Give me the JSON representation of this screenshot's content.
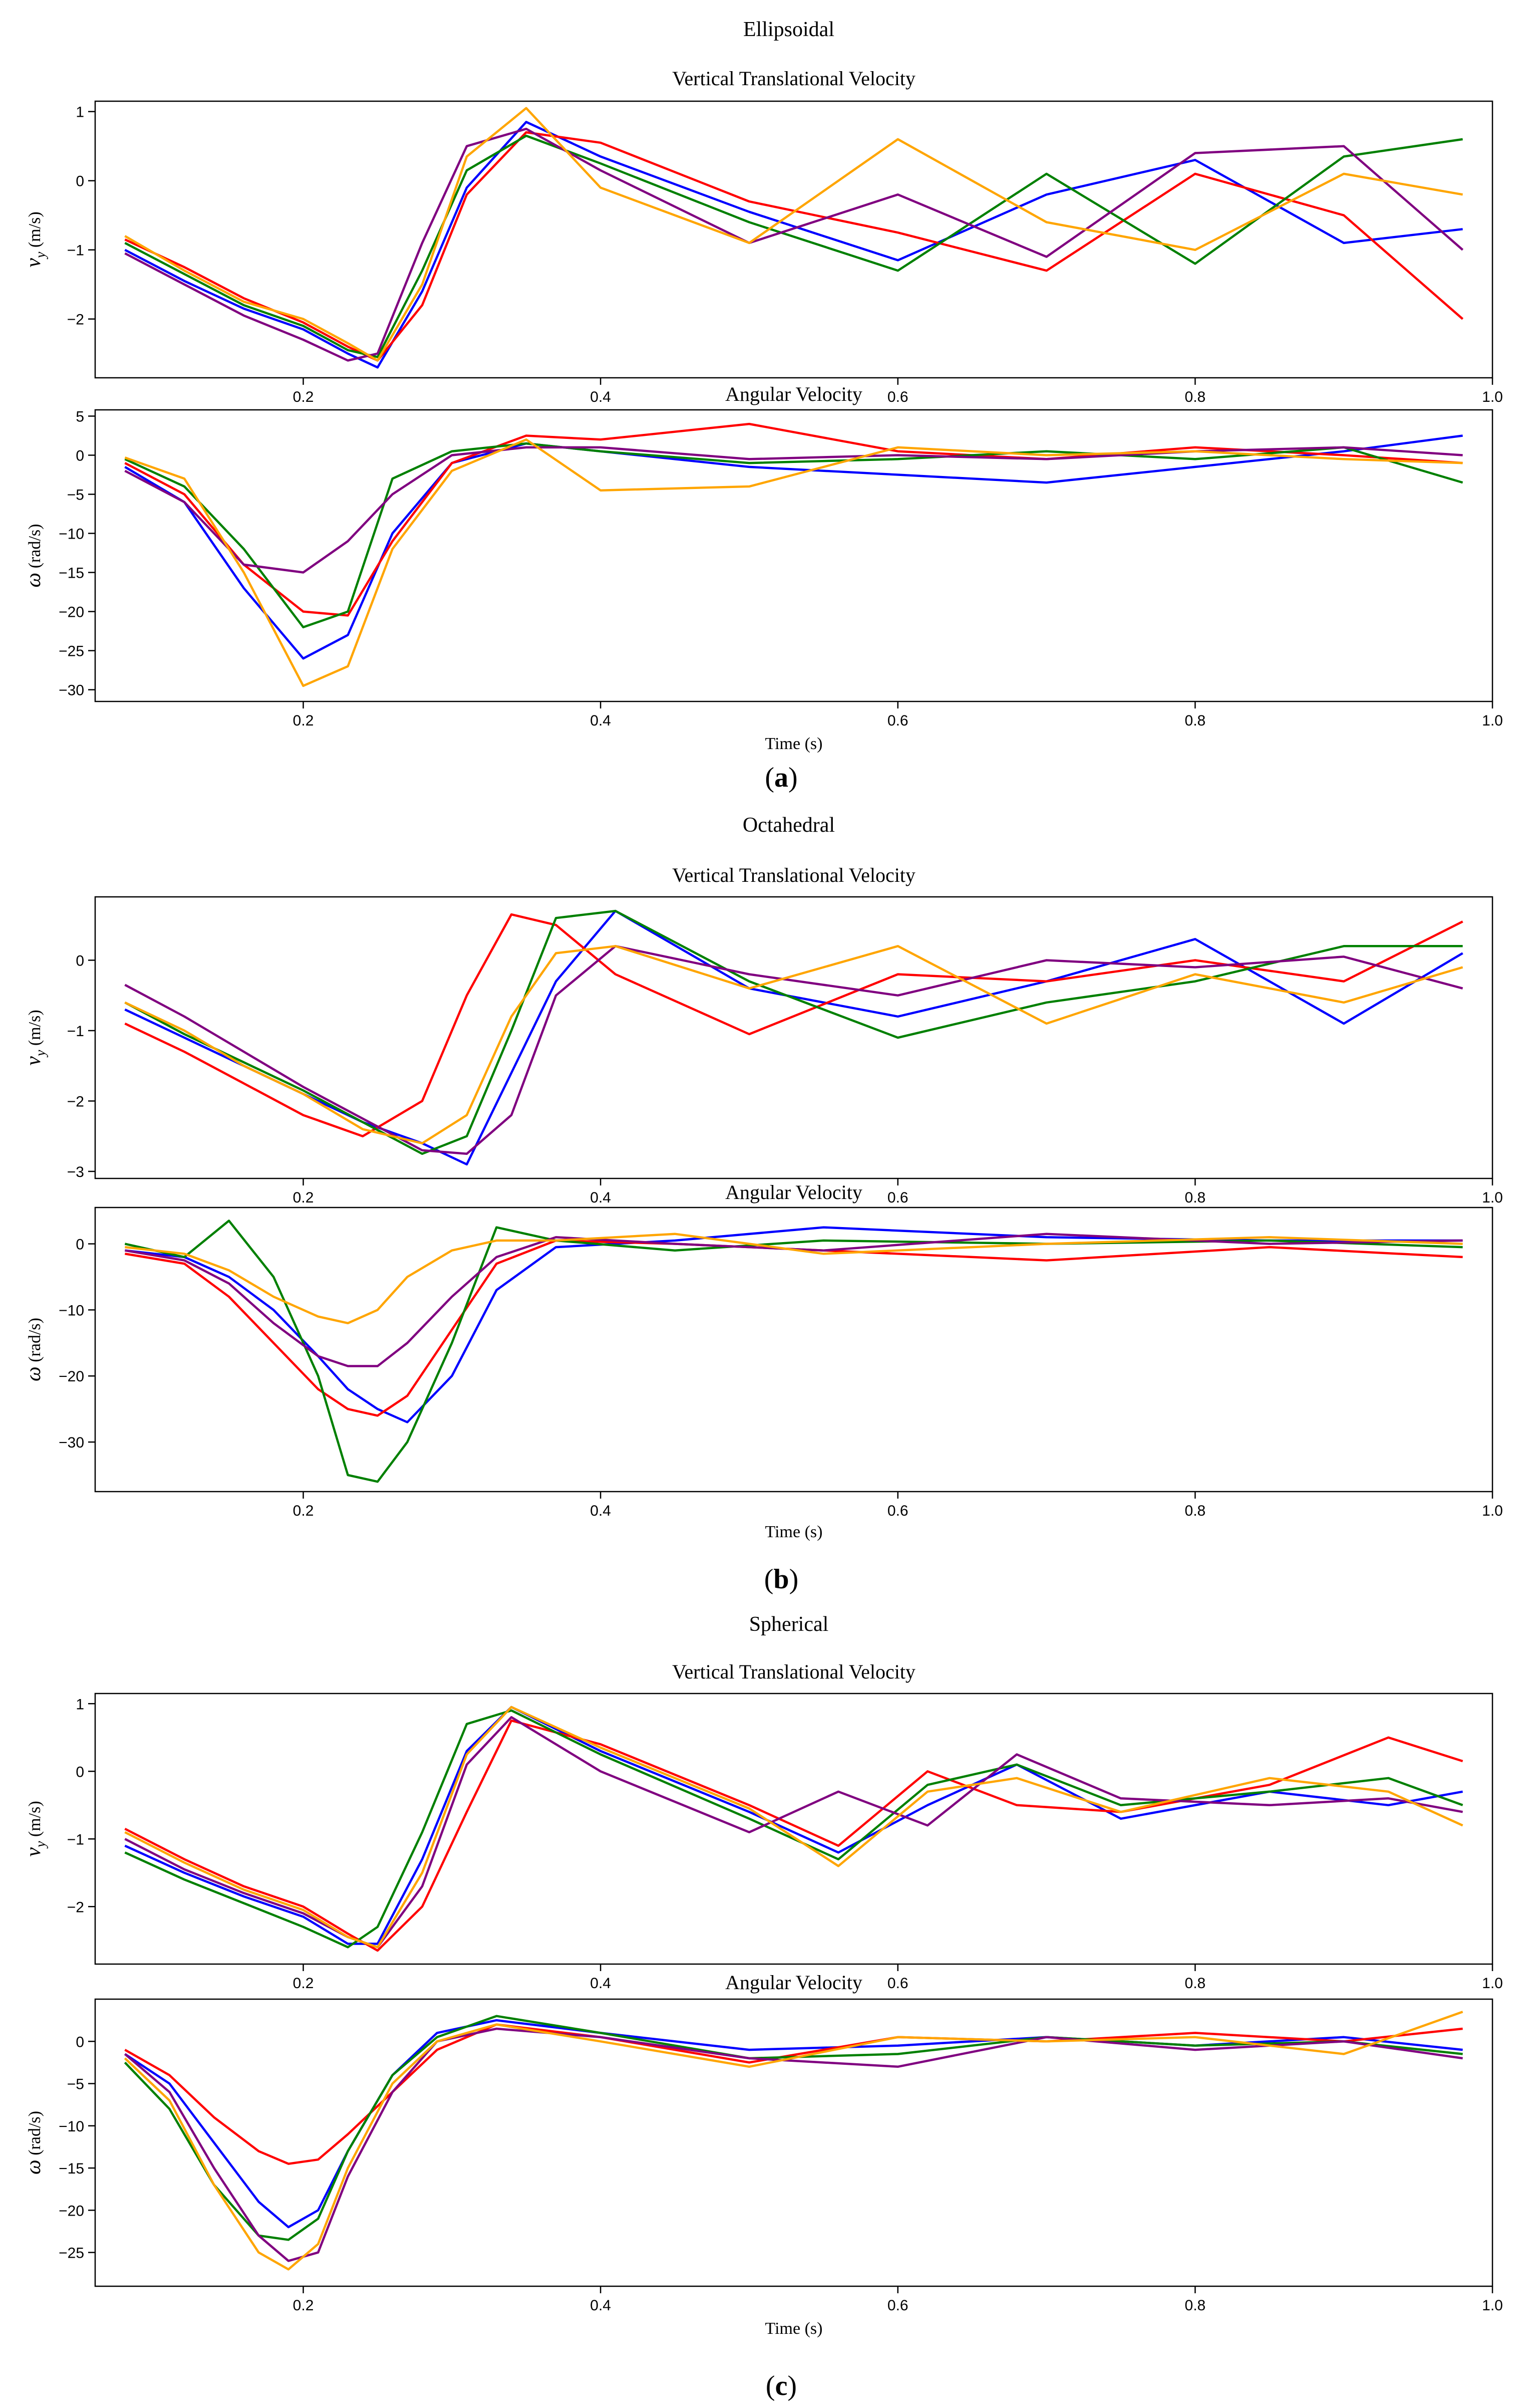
{
  "figure": {
    "panels": [
      {
        "id": "a",
        "caption": "a",
        "title": "Ellipsoidal"
      },
      {
        "id": "b",
        "caption": "b",
        "title": "Octahedral"
      },
      {
        "id": "c",
        "caption": "c",
        "title": "Spherical"
      }
    ]
  },
  "colors": {
    "series": [
      "#0000ff",
      "#ff0000",
      "#008000",
      "#800080",
      "#ffa500"
    ],
    "axis": "#000000",
    "background": "#ffffff"
  },
  "chart_data": [
    {
      "panel": "a",
      "type": "line",
      "title": "Vertical Translational Velocity",
      "xlabel": "",
      "ylabel": "v_y (m/s)",
      "ylabel_main": "v",
      "ylabel_sub": "y",
      "ylabel_unit": "(m/s)",
      "xlim": [
        0.06,
        1.0
      ],
      "ylim": [
        -2.85,
        1.15
      ],
      "xticks": [
        "0.2",
        "0.4",
        "0.6",
        "0.8",
        "1.0"
      ],
      "yticks": [
        "1",
        "0",
        "−1",
        "−2"
      ],
      "ytick_values": [
        1,
        0,
        -1,
        -2
      ],
      "x": [
        0.08,
        0.12,
        0.16,
        0.2,
        0.23,
        0.25,
        0.28,
        0.31,
        0.35,
        0.4,
        0.5,
        0.6,
        0.7,
        0.8,
        0.9,
        0.98
      ],
      "series": [
        {
          "name": "blue run",
          "color": "blue",
          "values": [
            -1.0,
            -1.45,
            -1.85,
            -2.15,
            -2.5,
            -2.7,
            -1.6,
            -0.1,
            0.85,
            0.35,
            -0.45,
            -1.15,
            -0.2,
            0.3,
            -0.9,
            -0.7
          ]
        },
        {
          "name": "red run",
          "color": "red",
          "values": [
            -0.85,
            -1.25,
            -1.7,
            -2.05,
            -2.4,
            -2.6,
            -1.8,
            -0.2,
            0.7,
            0.55,
            -0.3,
            -0.75,
            -1.3,
            0.1,
            -0.5,
            -2.0
          ]
        },
        {
          "name": "green run",
          "color": "green",
          "values": [
            -0.9,
            -1.35,
            -1.8,
            -2.1,
            -2.45,
            -2.55,
            -1.3,
            0.15,
            0.65,
            0.25,
            -0.6,
            -1.3,
            0.1,
            -1.2,
            0.35,
            0.6
          ]
        },
        {
          "name": "purple run",
          "color": "purple",
          "values": [
            -1.05,
            -1.5,
            -1.95,
            -2.3,
            -2.6,
            -2.5,
            -0.9,
            0.5,
            0.75,
            0.15,
            -0.9,
            -0.2,
            -1.1,
            0.4,
            0.5,
            -1.0
          ]
        },
        {
          "name": "orange run",
          "color": "orange",
          "values": [
            -0.8,
            -1.3,
            -1.75,
            -2.0,
            -2.35,
            -2.6,
            -1.5,
            0.35,
            1.05,
            -0.1,
            -0.9,
            0.6,
            -0.6,
            -1.0,
            0.1,
            -0.2
          ]
        }
      ]
    },
    {
      "panel": "a",
      "type": "line",
      "title": "Angular Velocity",
      "xlabel": "Time (s)",
      "ylabel": "ω (rad/s)",
      "ylabel_main": "ω",
      "ylabel_sub": "",
      "ylabel_unit": "(rad/s)",
      "xlim": [
        0.06,
        1.0
      ],
      "ylim": [
        -31.5,
        5.8
      ],
      "xticks": [
        "0.2",
        "0.4",
        "0.6",
        "0.8",
        "1.0"
      ],
      "yticks": [
        "5",
        "0",
        "−5",
        "−10",
        "−15",
        "−20",
        "−25",
        "−30"
      ],
      "ytick_values": [
        5,
        0,
        -5,
        -10,
        -15,
        -20,
        -25,
        -30
      ],
      "x": [
        0.08,
        0.12,
        0.16,
        0.2,
        0.23,
        0.26,
        0.3,
        0.35,
        0.4,
        0.5,
        0.6,
        0.7,
        0.8,
        0.9,
        0.98
      ],
      "series": [
        {
          "name": "blue run",
          "color": "blue",
          "values": [
            -1.5,
            -6.0,
            -17.0,
            -26.0,
            -23.0,
            -10.0,
            -1.0,
            1.5,
            0.5,
            -1.5,
            -2.5,
            -3.5,
            -1.5,
            0.5,
            2.5
          ]
        },
        {
          "name": "red run",
          "color": "red",
          "values": [
            -1.0,
            -5.0,
            -14.0,
            -20.0,
            -20.5,
            -11.0,
            -1.0,
            2.5,
            2.0,
            4.0,
            0.5,
            -0.5,
            1.0,
            0.0,
            -1.0
          ]
        },
        {
          "name": "green run",
          "color": "green",
          "values": [
            -0.5,
            -4.0,
            -12.0,
            -22.0,
            -20.0,
            -3.0,
            0.5,
            1.5,
            0.5,
            -1.0,
            -0.5,
            0.5,
            -0.5,
            1.0,
            -3.5
          ]
        },
        {
          "name": "purple run",
          "color": "purple",
          "values": [
            -2.0,
            -6.0,
            -14.0,
            -15.0,
            -11.0,
            -5.0,
            0.0,
            1.0,
            1.0,
            -0.5,
            0.0,
            -0.5,
            0.5,
            1.0,
            0.0
          ]
        },
        {
          "name": "orange run",
          "color": "orange",
          "values": [
            -0.3,
            -3.0,
            -15.0,
            -29.5,
            -27.0,
            -12.0,
            -2.0,
            2.0,
            -4.5,
            -4.0,
            1.0,
            0.0,
            0.5,
            -0.5,
            -1.0
          ]
        }
      ]
    },
    {
      "panel": "b",
      "type": "line",
      "title": "Vertical Translational Velocity",
      "xlabel": "",
      "ylabel": "v_y (m/s)",
      "ylabel_main": "v",
      "ylabel_sub": "y",
      "ylabel_unit": "(m/s)",
      "xlim": [
        0.06,
        1.0
      ],
      "ylim": [
        -3.1,
        0.9
      ],
      "xticks": [
        "0.2",
        "0.4",
        "0.6",
        "0.8",
        "1.0"
      ],
      "yticks": [
        "0",
        "−1",
        "−2",
        "−3"
      ],
      "ytick_values": [
        0,
        -1,
        -2,
        -3
      ],
      "x": [
        0.08,
        0.12,
        0.16,
        0.2,
        0.24,
        0.28,
        0.31,
        0.34,
        0.37,
        0.41,
        0.5,
        0.6,
        0.7,
        0.8,
        0.9,
        0.98
      ],
      "series": [
        {
          "name": "blue run",
          "color": "blue",
          "values": [
            -0.7,
            -1.1,
            -1.5,
            -1.9,
            -2.3,
            -2.6,
            -2.9,
            -1.6,
            -0.3,
            0.7,
            -0.4,
            -0.8,
            -0.3,
            0.3,
            -0.9,
            0.1
          ]
        },
        {
          "name": "red run",
          "color": "red",
          "values": [
            -0.9,
            -1.3,
            -1.75,
            -2.2,
            -2.5,
            -2.0,
            -0.5,
            0.65,
            0.5,
            -0.2,
            -1.05,
            -0.2,
            -0.3,
            0.0,
            -0.3,
            0.55
          ]
        },
        {
          "name": "green run",
          "color": "green",
          "values": [
            -0.6,
            -1.05,
            -1.45,
            -1.85,
            -2.3,
            -2.75,
            -2.5,
            -1.0,
            0.6,
            0.7,
            -0.3,
            -1.1,
            -0.6,
            -0.3,
            0.2,
            0.2
          ]
        },
        {
          "name": "purple run",
          "color": "purple",
          "values": [
            -0.35,
            -0.8,
            -1.3,
            -1.8,
            -2.25,
            -2.7,
            -2.75,
            -2.2,
            -0.5,
            0.2,
            -0.2,
            -0.5,
            0.0,
            -0.1,
            0.05,
            -0.4
          ]
        },
        {
          "name": "orange run",
          "color": "orange",
          "values": [
            -0.6,
            -1.0,
            -1.5,
            -1.9,
            -2.4,
            -2.6,
            -2.2,
            -0.8,
            0.1,
            0.2,
            -0.4,
            0.2,
            -0.9,
            -0.2,
            -0.6,
            -0.1
          ]
        }
      ]
    },
    {
      "panel": "b",
      "type": "line",
      "title": "Angular Velocity",
      "xlabel": "Time (s)",
      "ylabel": "ω (rad/s)",
      "ylabel_main": "ω",
      "ylabel_sub": "",
      "ylabel_unit": "(rad/s)",
      "xlim": [
        0.06,
        1.0
      ],
      "ylim": [
        -37.5,
        5.5
      ],
      "xticks": [
        "0.2",
        "0.4",
        "0.6",
        "0.8",
        "1.0"
      ],
      "yticks": [
        "0",
        "−10",
        "−20",
        "−30"
      ],
      "ytick_values": [
        0,
        -10,
        -20,
        -30
      ],
      "x": [
        0.08,
        0.12,
        0.15,
        0.18,
        0.21,
        0.23,
        0.25,
        0.27,
        0.3,
        0.33,
        0.37,
        0.45,
        0.55,
        0.7,
        0.85,
        0.98
      ],
      "series": [
        {
          "name": "blue run",
          "color": "blue",
          "values": [
            -1.0,
            -2.0,
            -5.0,
            -10.0,
            -17.0,
            -22.0,
            -25.0,
            -27.0,
            -20.0,
            -7.0,
            -0.5,
            0.5,
            2.5,
            1.0,
            0.5,
            0.5
          ]
        },
        {
          "name": "red run",
          "color": "red",
          "values": [
            -1.5,
            -3.0,
            -8.0,
            -15.0,
            -22.0,
            -25.0,
            -26.0,
            -23.0,
            -13.0,
            -3.0,
            0.5,
            0.0,
            -1.0,
            -2.5,
            -0.5,
            -2.0
          ]
        },
        {
          "name": "green run",
          "color": "green",
          "values": [
            0.0,
            -2.0,
            3.5,
            -5.0,
            -20.0,
            -35.0,
            -36.0,
            -30.0,
            -15.0,
            2.5,
            0.5,
            -1.0,
            0.5,
            0.0,
            0.5,
            -0.5
          ]
        },
        {
          "name": "purple run",
          "color": "purple",
          "values": [
            -1.0,
            -2.5,
            -6.0,
            -12.0,
            -17.0,
            -18.5,
            -18.5,
            -15.0,
            -8.0,
            -2.0,
            1.0,
            0.0,
            -1.0,
            1.5,
            0.0,
            0.5
          ]
        },
        {
          "name": "orange run",
          "color": "orange",
          "values": [
            -0.5,
            -1.5,
            -4.0,
            -8.0,
            -11.0,
            -12.0,
            -10.0,
            -5.0,
            -1.0,
            0.5,
            0.5,
            1.5,
            -1.5,
            0.0,
            1.0,
            0.0
          ]
        }
      ]
    },
    {
      "panel": "c",
      "type": "line",
      "title": "Vertical Translational Velocity",
      "xlabel": "",
      "ylabel": "v_y (m/s)",
      "ylabel_main": "v",
      "ylabel_sub": "y",
      "ylabel_unit": "(m/s)",
      "xlim": [
        0.06,
        1.0
      ],
      "ylim": [
        -2.85,
        1.15
      ],
      "xticks": [
        "0.2",
        "0.4",
        "0.6",
        "0.8",
        "1.0"
      ],
      "yticks": [
        "1",
        "0",
        "−1",
        "−2"
      ],
      "ytick_values": [
        1,
        0,
        -1,
        -2
      ],
      "x": [
        0.08,
        0.12,
        0.16,
        0.2,
        0.23,
        0.25,
        0.28,
        0.31,
        0.34,
        0.4,
        0.5,
        0.56,
        0.62,
        0.68,
        0.75,
        0.85,
        0.93,
        0.98
      ],
      "series": [
        {
          "name": "blue run",
          "color": "blue",
          "values": [
            -1.1,
            -1.5,
            -1.85,
            -2.15,
            -2.55,
            -2.55,
            -1.3,
            0.3,
            0.95,
            0.3,
            -0.6,
            -1.2,
            -0.5,
            0.1,
            -0.7,
            -0.3,
            -0.5,
            -0.3
          ]
        },
        {
          "name": "red run",
          "color": "red",
          "values": [
            -0.85,
            -1.3,
            -1.7,
            -2.0,
            -2.4,
            -2.65,
            -2.0,
            -0.6,
            0.75,
            0.4,
            -0.5,
            -1.1,
            0.0,
            -0.5,
            -0.6,
            -0.2,
            0.5,
            0.15
          ]
        },
        {
          "name": "green run",
          "color": "green",
          "values": [
            -1.2,
            -1.6,
            -1.95,
            -2.3,
            -2.6,
            -2.3,
            -0.9,
            0.7,
            0.9,
            0.25,
            -0.7,
            -1.3,
            -0.2,
            0.1,
            -0.5,
            -0.3,
            -0.1,
            -0.5
          ]
        },
        {
          "name": "purple run",
          "color": "purple",
          "values": [
            -1.0,
            -1.45,
            -1.8,
            -2.1,
            -2.45,
            -2.6,
            -1.7,
            0.1,
            0.8,
            0.0,
            -0.9,
            -0.3,
            -0.8,
            0.25,
            -0.4,
            -0.5,
            -0.4,
            -0.6
          ]
        },
        {
          "name": "orange run",
          "color": "orange",
          "values": [
            -0.9,
            -1.35,
            -1.75,
            -2.05,
            -2.45,
            -2.6,
            -1.5,
            0.25,
            0.95,
            0.35,
            -0.55,
            -1.4,
            -0.3,
            -0.1,
            -0.6,
            -0.1,
            -0.3,
            -0.8
          ]
        }
      ]
    },
    {
      "panel": "c",
      "type": "line",
      "title": "Angular Velocity",
      "xlabel": "Time (s)",
      "ylabel": "ω (rad/s)",
      "ylabel_main": "ω",
      "ylabel_sub": "",
      "ylabel_unit": "(rad/s)",
      "xlim": [
        0.06,
        1.0
      ],
      "ylim": [
        -29.0,
        5.0
      ],
      "xticks": [
        "0.2",
        "0.4",
        "0.6",
        "0.8",
        "1.0"
      ],
      "yticks": [
        "0",
        "−5",
        "−10",
        "−15",
        "−20",
        "−25"
      ],
      "ytick_values": [
        0,
        -5,
        -10,
        -15,
        -20,
        -25
      ],
      "x": [
        0.08,
        0.11,
        0.14,
        0.17,
        0.19,
        0.21,
        0.23,
        0.26,
        0.29,
        0.33,
        0.4,
        0.5,
        0.6,
        0.7,
        0.8,
        0.9,
        0.98
      ],
      "series": [
        {
          "name": "blue run",
          "color": "blue",
          "values": [
            -1.5,
            -5.0,
            -12.0,
            -19.0,
            -22.0,
            -20.0,
            -13.0,
            -4.0,
            1.0,
            2.5,
            1.0,
            -1.0,
            -0.5,
            0.5,
            -0.5,
            0.5,
            -1.0
          ]
        },
        {
          "name": "red run",
          "color": "red",
          "values": [
            -1.0,
            -4.0,
            -9.0,
            -13.0,
            -14.5,
            -14.0,
            -11.0,
            -6.0,
            -1.0,
            2.0,
            0.5,
            -2.5,
            0.5,
            0.0,
            1.0,
            0.0,
            1.5
          ]
        },
        {
          "name": "green run",
          "color": "green",
          "values": [
            -2.5,
            -8.0,
            -17.0,
            -23.0,
            -23.5,
            -21.0,
            -13.0,
            -4.0,
            0.5,
            3.0,
            1.0,
            -2.0,
            -1.5,
            0.5,
            -0.5,
            0.0,
            -1.5
          ]
        },
        {
          "name": "purple run",
          "color": "purple",
          "values": [
            -1.5,
            -6.0,
            -15.0,
            -23.0,
            -26.0,
            -25.0,
            -16.0,
            -6.0,
            0.0,
            1.5,
            0.5,
            -2.0,
            -3.0,
            0.5,
            -1.0,
            0.0,
            -2.0
          ]
        },
        {
          "name": "orange run",
          "color": "orange",
          "values": [
            -2.0,
            -7.0,
            -17.0,
            -25.0,
            -27.0,
            -24.0,
            -15.0,
            -5.0,
            0.0,
            2.0,
            0.0,
            -3.0,
            0.5,
            0.0,
            0.5,
            -1.5,
            3.5
          ]
        }
      ]
    }
  ]
}
